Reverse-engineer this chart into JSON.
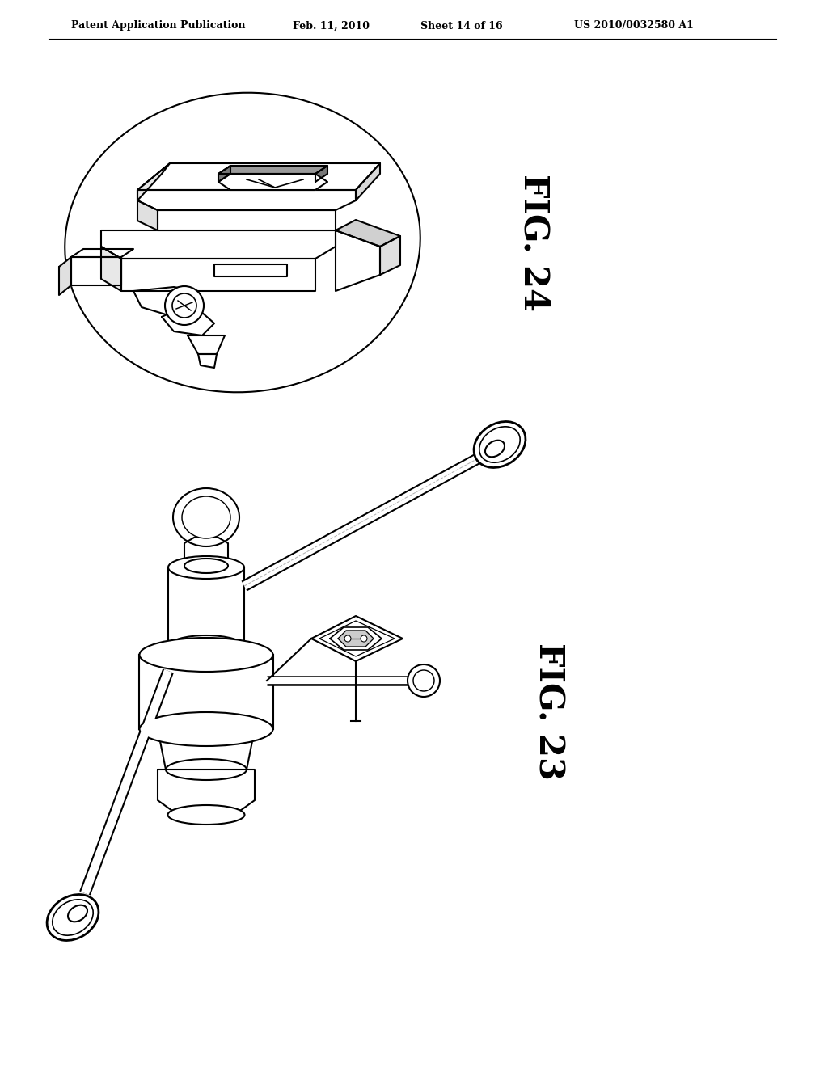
{
  "background_color": "#ffffff",
  "header_text": "Patent Application Publication",
  "header_date": "Feb. 11, 2010",
  "header_sheet": "Sheet 14 of 16",
  "header_patent": "US 2010/0032580 A1",
  "fig24_label": "FIG. 24",
  "fig23_label": "FIG. 23",
  "line_color": "#000000",
  "line_width": 1.5
}
